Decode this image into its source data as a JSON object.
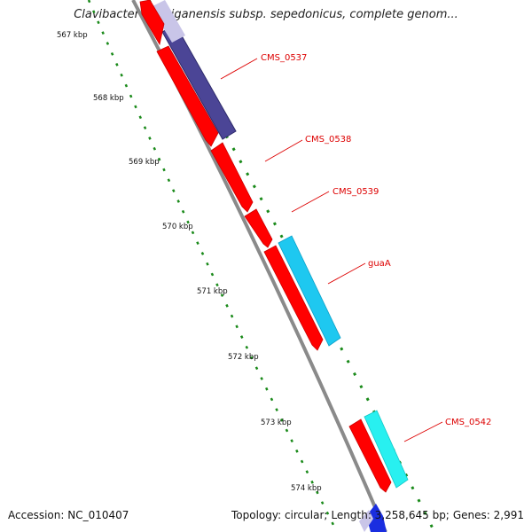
{
  "title": "Clavibacter michiganensis subsp. sepedonicus, complete genom...",
  "footer": {
    "accession": "Accession: NC_010407",
    "topology": "Topology: circular;",
    "length": "Length: 3,258,645 bp;",
    "genes": "Genes: 2,991"
  },
  "ticks": [
    "567 kbp",
    "568 kbp",
    "569 kbp",
    "570 kbp",
    "571 kbp",
    "572 kbp",
    "573 kbp",
    "574 kbp"
  ],
  "genes": [
    {
      "label": "CMS_0537"
    },
    {
      "label": "CMS_0538"
    },
    {
      "label": "CMS_0539"
    },
    {
      "label": "guaA"
    },
    {
      "label": "CMS_0542"
    }
  ],
  "colors": {
    "cds_forward": "#ff0000",
    "cds_reverse_dark": "#4b4596",
    "cds_cyan": "#1ec8f0",
    "cds_light_cyan": "#28f0f0",
    "backbone": "#8a8a8a",
    "gc_dots": "#1a8a1a",
    "gene_label": "#dd0000"
  }
}
